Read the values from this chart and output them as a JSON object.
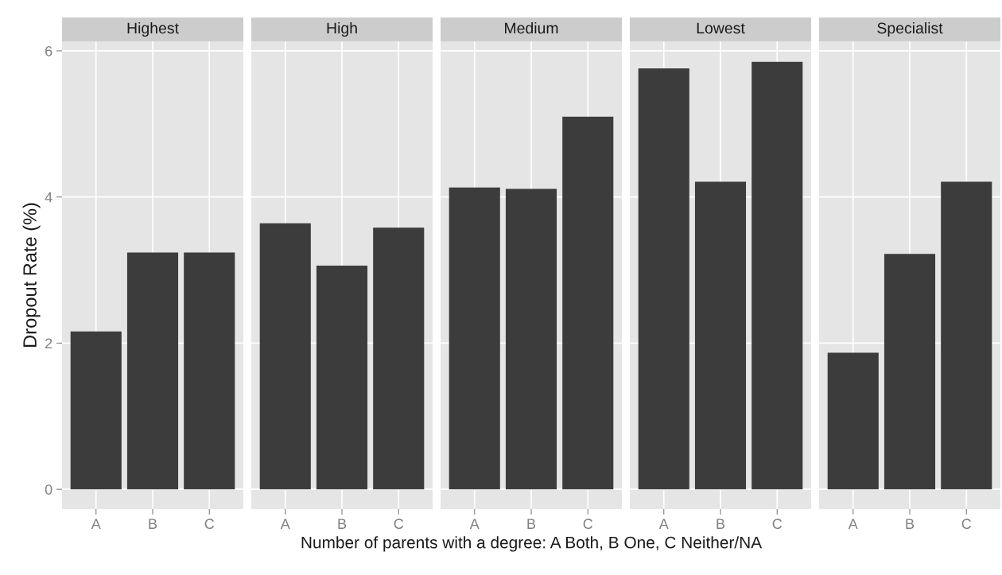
{
  "chart_data": [
    {
      "type": "bar",
      "title": "Highest",
      "ylabel": "Dropout Rate (%)",
      "categories": [
        "A",
        "B",
        "C"
      ],
      "values": [
        2.16,
        3.24,
        3.24
      ],
      "color": "#3c3c3c",
      "ylim": [
        -0.27,
        6.13
      ],
      "yticks": [
        0,
        2,
        4,
        6
      ],
      "grid": true
    },
    {
      "type": "bar",
      "title": "High",
      "categories": [
        "A",
        "B",
        "C"
      ],
      "values": [
        3.64,
        3.06,
        3.58
      ],
      "color": "#3c3c3c",
      "ylim": [
        -0.27,
        6.13
      ],
      "yticks": [
        0,
        2,
        4,
        6
      ],
      "grid": true,
      "tick_labels": "x"
    },
    {
      "type": "bar",
      "title": "Medium",
      "xlabel": "Number of parents with a degree: A Both, B One, C Neither/NA",
      "categories": [
        "A",
        "B",
        "C"
      ],
      "values": [
        4.13,
        4.11,
        5.1
      ],
      "color": "#3c3c3c",
      "ylim": [
        -0.27,
        6.13
      ],
      "yticks": [
        0,
        2,
        4,
        6
      ],
      "grid": true,
      "tick_labels": "x"
    },
    {
      "type": "bar",
      "title": "Lowest",
      "categories": [
        "A",
        "B",
        "C"
      ],
      "values": [
        5.76,
        4.21,
        5.85
      ],
      "color": "#3c3c3c",
      "ylim": [
        -0.27,
        6.13
      ],
      "yticks": [
        0,
        2,
        4,
        6
      ],
      "grid": true,
      "tick_labels": "x"
    },
    {
      "type": "bar",
      "title": "Specialist",
      "categories": [
        "A",
        "B",
        "C"
      ],
      "values": [
        1.87,
        3.22,
        4.21
      ],
      "color": "#3c3c3c",
      "ylim": [
        -0.27,
        6.13
      ],
      "yticks": [
        0,
        2,
        4,
        6
      ],
      "grid": true,
      "tick_labels": "x"
    }
  ]
}
